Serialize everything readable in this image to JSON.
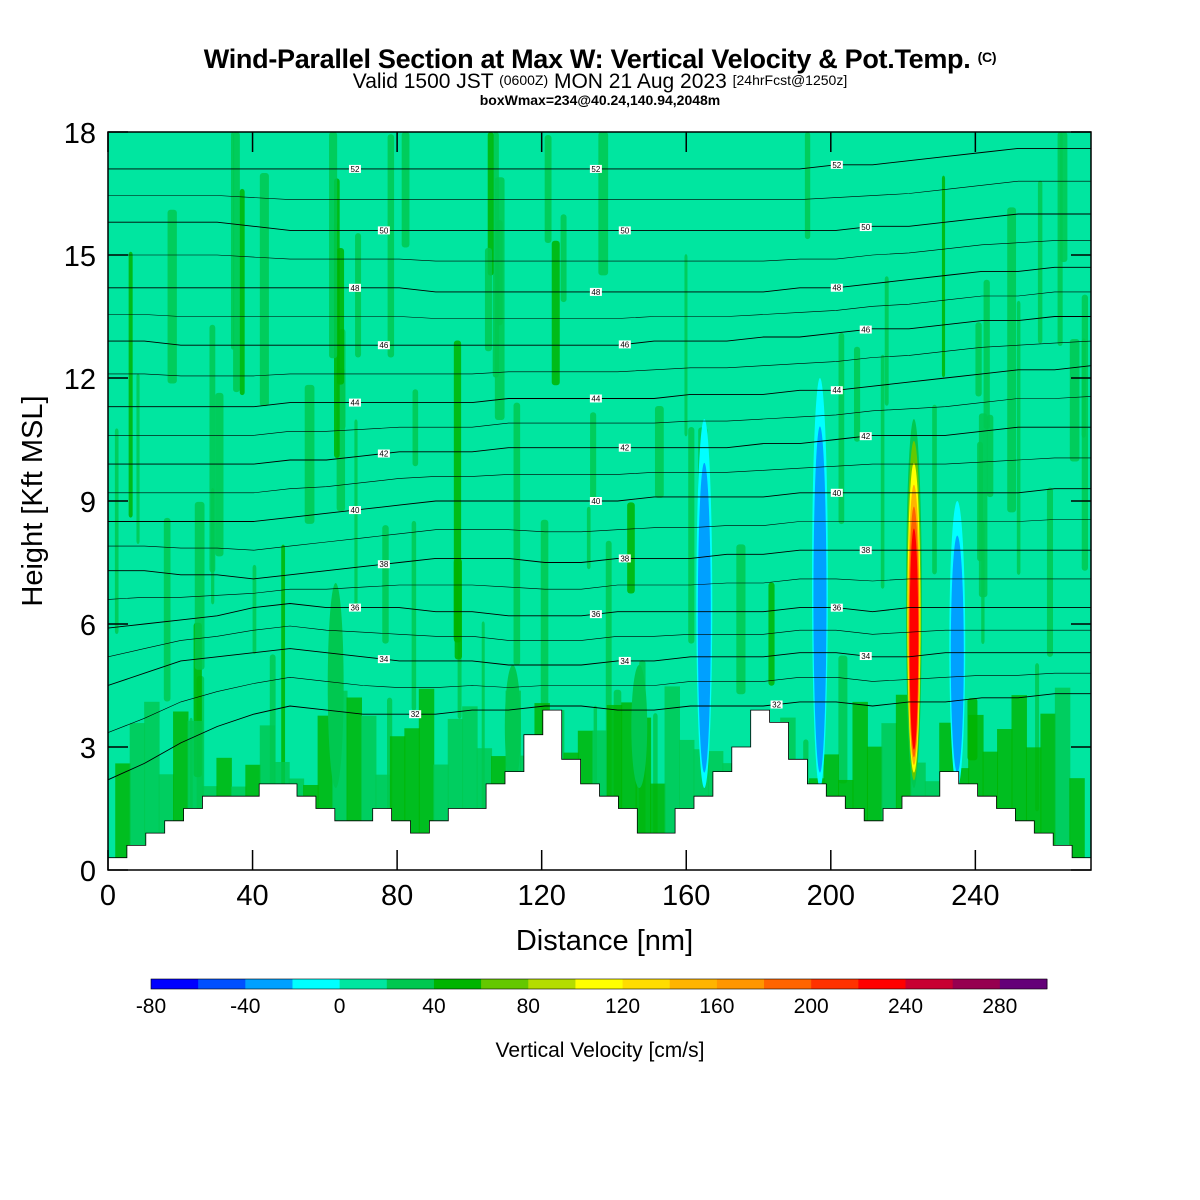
{
  "header": {
    "title_main": "Wind-Parallel Section at Max W: Vertical Velocity & Pot.Temp.",
    "title_mark": "(C)",
    "valid_prefix": "Valid 1500 JST",
    "valid_utc": "(0600Z)",
    "valid_date": "MON 21 Aug 2023",
    "forecast": "[24hrFcst@1250z]",
    "boxwmax": "boxWmax=234@40.24,140.94,2048m"
  },
  "chart_data": {
    "type": "heatmap",
    "xlabel": "Distance [nm]",
    "ylabel": "Height [Kft MSL]",
    "xlim": [
      0,
      272
    ],
    "ylim": [
      0,
      18
    ],
    "x_ticks": [
      0,
      40,
      80,
      120,
      160,
      200,
      240
    ],
    "y_ticks": [
      0,
      3,
      6,
      9,
      12,
      15,
      18
    ],
    "colorbar": {
      "label": "Vertical Velocity [cm/s]",
      "ticks": [
        -80,
        -40,
        0,
        40,
        80,
        120,
        160,
        200,
        240,
        280
      ],
      "range": [
        -80,
        300
      ],
      "colors": [
        "#0000ff",
        "#0050ff",
        "#00a0ff",
        "#00ffff",
        "#00e6a0",
        "#00c850",
        "#00b400",
        "#64c800",
        "#b4dc00",
        "#ffff00",
        "#ffdc00",
        "#ffb400",
        "#ff9600",
        "#ff6400",
        "#ff3200",
        "#ff0000",
        "#c80032",
        "#960050",
        "#640078"
      ]
    },
    "theta_contours": [
      {
        "level": 32,
        "z": [
          2.2,
          2.6,
          3.1,
          3.5,
          3.8,
          4.0,
          3.9,
          3.8,
          3.8,
          3.8,
          3.9,
          3.9,
          4.0,
          4.0,
          3.9,
          3.9,
          4.0,
          4.0,
          4.0,
          4.1,
          4.1,
          4.0,
          4.1,
          4.1,
          4.2,
          4.2,
          4.3,
          4.3
        ]
      },
      {
        "level": 34,
        "z": [
          4.5,
          4.8,
          5.1,
          5.2,
          5.3,
          5.4,
          5.3,
          5.2,
          5.1,
          5.1,
          5.1,
          5.0,
          5.0,
          5.0,
          5.1,
          5.1,
          5.2,
          5.2,
          5.2,
          5.3,
          5.3,
          5.2,
          5.2,
          5.3,
          5.3,
          5.3,
          5.3,
          5.3
        ]
      },
      {
        "level": 36,
        "z": [
          5.9,
          6.0,
          6.1,
          6.2,
          6.4,
          6.5,
          6.4,
          6.4,
          6.4,
          6.3,
          6.3,
          6.2,
          6.2,
          6.2,
          6.3,
          6.3,
          6.3,
          6.3,
          6.3,
          6.4,
          6.4,
          6.3,
          6.4,
          6.4,
          6.4,
          6.4,
          6.4,
          6.4
        ]
      },
      {
        "level": 38,
        "z": [
          7.3,
          7.3,
          7.2,
          7.2,
          7.1,
          7.2,
          7.3,
          7.4,
          7.5,
          7.6,
          7.6,
          7.6,
          7.5,
          7.5,
          7.6,
          7.6,
          7.6,
          7.7,
          7.7,
          7.8,
          7.8,
          7.8,
          7.8,
          7.8,
          7.8,
          7.8,
          7.8,
          7.8
        ]
      },
      {
        "level": 40,
        "z": [
          8.5,
          8.5,
          8.5,
          8.5,
          8.5,
          8.6,
          8.7,
          8.8,
          8.9,
          9.0,
          9.0,
          9.0,
          9.0,
          9.0,
          9.0,
          9.1,
          9.1,
          9.1,
          9.1,
          9.2,
          9.2,
          9.2,
          9.2,
          9.2,
          9.2,
          9.2,
          9.3,
          9.3
        ]
      },
      {
        "level": 42,
        "z": [
          9.9,
          9.9,
          9.9,
          9.9,
          9.9,
          10.0,
          10.0,
          10.1,
          10.2,
          10.2,
          10.2,
          10.3,
          10.3,
          10.3,
          10.3,
          10.3,
          10.3,
          10.3,
          10.4,
          10.4,
          10.5,
          10.6,
          10.6,
          10.6,
          10.7,
          10.8,
          10.8,
          10.8
        ]
      },
      {
        "level": 44,
        "z": [
          11.3,
          11.3,
          11.3,
          11.3,
          11.3,
          11.4,
          11.4,
          11.4,
          11.4,
          11.4,
          11.4,
          11.5,
          11.5,
          11.5,
          11.5,
          11.5,
          11.6,
          11.6,
          11.6,
          11.7,
          11.7,
          11.8,
          11.9,
          12.0,
          12.1,
          12.2,
          12.2,
          12.3
        ]
      },
      {
        "level": 46,
        "z": [
          12.9,
          12.9,
          12.8,
          12.8,
          12.8,
          12.8,
          12.8,
          12.8,
          12.8,
          12.8,
          12.8,
          12.8,
          12.8,
          12.8,
          12.8,
          12.9,
          12.9,
          12.9,
          13.0,
          13.0,
          13.1,
          13.2,
          13.2,
          13.3,
          13.4,
          13.4,
          13.5,
          13.5
        ]
      },
      {
        "level": 48,
        "z": [
          14.2,
          14.2,
          14.2,
          14.2,
          14.2,
          14.2,
          14.2,
          14.2,
          14.2,
          14.1,
          14.1,
          14.1,
          14.1,
          14.1,
          14.1,
          14.1,
          14.1,
          14.1,
          14.1,
          14.2,
          14.2,
          14.3,
          14.4,
          14.5,
          14.6,
          14.6,
          14.7,
          14.7
        ]
      },
      {
        "level": 50,
        "z": [
          15.8,
          15.8,
          15.8,
          15.8,
          15.7,
          15.6,
          15.6,
          15.6,
          15.6,
          15.6,
          15.6,
          15.6,
          15.6,
          15.6,
          15.6,
          15.6,
          15.6,
          15.6,
          15.6,
          15.6,
          15.6,
          15.7,
          15.7,
          15.8,
          15.9,
          16.0,
          16.0,
          16.0
        ]
      },
      {
        "level": 52,
        "z": [
          17.1,
          17.1,
          17.1,
          17.1,
          17.1,
          17.1,
          17.1,
          17.1,
          17.1,
          17.1,
          17.1,
          17.1,
          17.1,
          17.1,
          17.1,
          17.1,
          17.1,
          17.1,
          17.1,
          17.1,
          17.2,
          17.2,
          17.3,
          17.4,
          17.5,
          17.6,
          17.6,
          17.6
        ]
      }
    ],
    "contour_labels": [
      "52",
      "52",
      "52",
      "50",
      "50",
      "50",
      "48",
      "48",
      "48",
      "46",
      "46",
      "46",
      "44",
      "44",
      "44",
      "42",
      "42",
      "42",
      "40",
      "40",
      "40",
      "38",
      "38",
      "38",
      "36",
      "36",
      "36",
      "34",
      "34",
      "34",
      "32",
      "32"
    ],
    "terrain_height_profile": [
      0.3,
      0.6,
      0.9,
      1.2,
      1.5,
      1.8,
      1.8,
      1.8,
      2.1,
      2.1,
      1.8,
      1.5,
      1.2,
      1.2,
      1.5,
      1.2,
      0.9,
      1.2,
      1.5,
      1.5,
      2.1,
      2.4,
      3.3,
      3.9,
      2.7,
      2.1,
      1.8,
      1.5,
      0.9,
      0.9,
      1.5,
      1.8,
      2.4,
      3.0,
      3.9,
      3.6,
      2.7,
      2.1,
      1.8,
      1.5,
      1.2,
      1.5,
      1.8,
      1.8,
      2.4,
      2.1,
      1.8,
      1.5,
      1.2,
      0.9,
      0.6,
      0.3
    ],
    "updrafts": [
      {
        "x": 63,
        "vmax": 40,
        "top": 7
      },
      {
        "x": 112,
        "vmax": 40,
        "top": 5
      },
      {
        "x": 147,
        "vmax": 35,
        "top": 5
      },
      {
        "x": 165,
        "vmax": -40,
        "top": 11
      },
      {
        "x": 197,
        "vmax": -50,
        "top": 12
      },
      {
        "x": 223,
        "vmax": 234,
        "top": 11
      },
      {
        "x": 235,
        "vmax": -40,
        "top": 9
      }
    ]
  }
}
